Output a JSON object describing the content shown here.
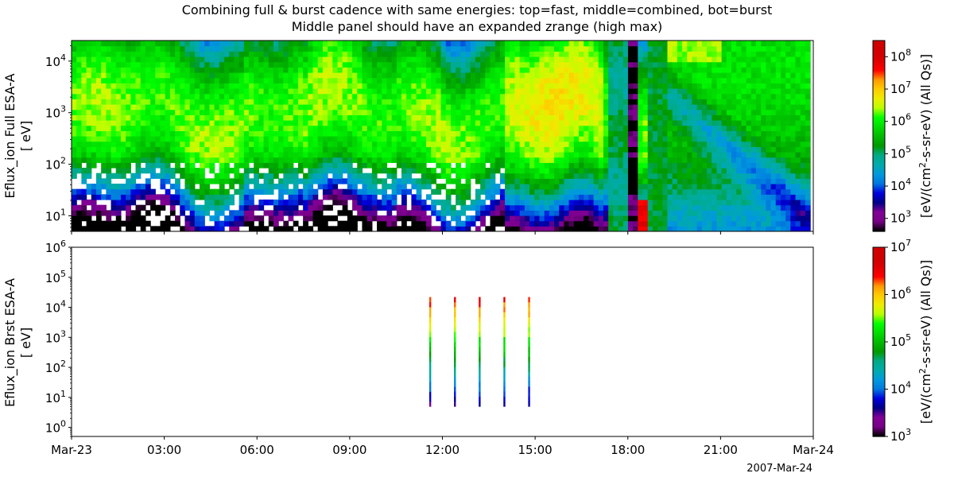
{
  "chart_data": {
    "type": "heatmap",
    "title_line1": "Combining full & burst cadence with same energies: top=fast, middle=combined, bot=burst",
    "title_line2": "Middle panel should have an expanded zrange (high max)",
    "date_label": "2007-Mar-24",
    "x_ticks_hours": [
      0,
      3,
      6,
      9,
      12,
      15,
      18,
      21,
      24
    ],
    "x_tick_labels": [
      "Mar-23",
      "03:00",
      "06:00",
      "09:00",
      "12:00",
      "15:00",
      "18:00",
      "21:00",
      "Mar-24"
    ],
    "panels": [
      {
        "name": "full",
        "ylabel_line1": "Eflux_ion Full ESA-A",
        "ylabel_line2": "[ eV]",
        "ylim": [
          5,
          25000
        ],
        "y_ticks": [
          {
            "value": 10,
            "base": "10",
            "exp": "1"
          },
          {
            "value": 100,
            "base": "10",
            "exp": "2"
          },
          {
            "value": 1000,
            "base": "10",
            "exp": "3"
          },
          {
            "value": 10000,
            "base": "10",
            "exp": "4"
          }
        ],
        "zlim_log": [
          2.6,
          8.5
        ],
        "zlabel_prefix": "[eV/(cm",
        "zlabel_sup": "2",
        "zlabel_suffix": "-s-sr-eV) (All Qs)]",
        "z_ticks": [
          {
            "logvalue": 3,
            "base": "10",
            "exp": "3"
          },
          {
            "logvalue": 4,
            "base": "10",
            "exp": "4"
          },
          {
            "logvalue": 5,
            "base": "10",
            "exp": "5"
          },
          {
            "logvalue": 6,
            "base": "10",
            "exp": "6"
          },
          {
            "logvalue": 7,
            "base": "10",
            "exp": "7"
          },
          {
            "logvalue": 8,
            "base": "10",
            "exp": "8"
          }
        ],
        "x_range_hours": [
          0,
          23.9
        ]
      },
      {
        "name": "burst",
        "ylabel_line1": "Eflux_ion Brst ESA-A",
        "ylabel_line2": "[ eV]",
        "ylim": [
          0.5,
          1000000
        ],
        "y_ticks": [
          {
            "value": 1,
            "base": "10",
            "exp": "0"
          },
          {
            "value": 10,
            "base": "10",
            "exp": "1"
          },
          {
            "value": 100,
            "base": "10",
            "exp": "2"
          },
          {
            "value": 1000,
            "base": "10",
            "exp": "3"
          },
          {
            "value": 10000,
            "base": "10",
            "exp": "4"
          },
          {
            "value": 100000,
            "base": "10",
            "exp": "5"
          },
          {
            "value": 1000000,
            "base": "10",
            "exp": "6"
          }
        ],
        "zlim_log": [
          3,
          7
        ],
        "zlabel_prefix": "[eV/(cm",
        "zlabel_sup": "2",
        "zlabel_suffix": "-s-sr-eV) (All Qs)]",
        "z_ticks": [
          {
            "logvalue": 3,
            "base": "10",
            "exp": "3"
          },
          {
            "logvalue": 4,
            "base": "10",
            "exp": "4"
          },
          {
            "logvalue": 5,
            "base": "10",
            "exp": "5"
          },
          {
            "logvalue": 6,
            "base": "10",
            "exp": "6"
          },
          {
            "logvalue": 7,
            "base": "10",
            "exp": "7"
          }
        ],
        "burst_times_hours": [
          11.6,
          12.4,
          13.2,
          14.0,
          14.8
        ],
        "burst_energy_range": [
          5,
          22000
        ]
      }
    ]
  }
}
